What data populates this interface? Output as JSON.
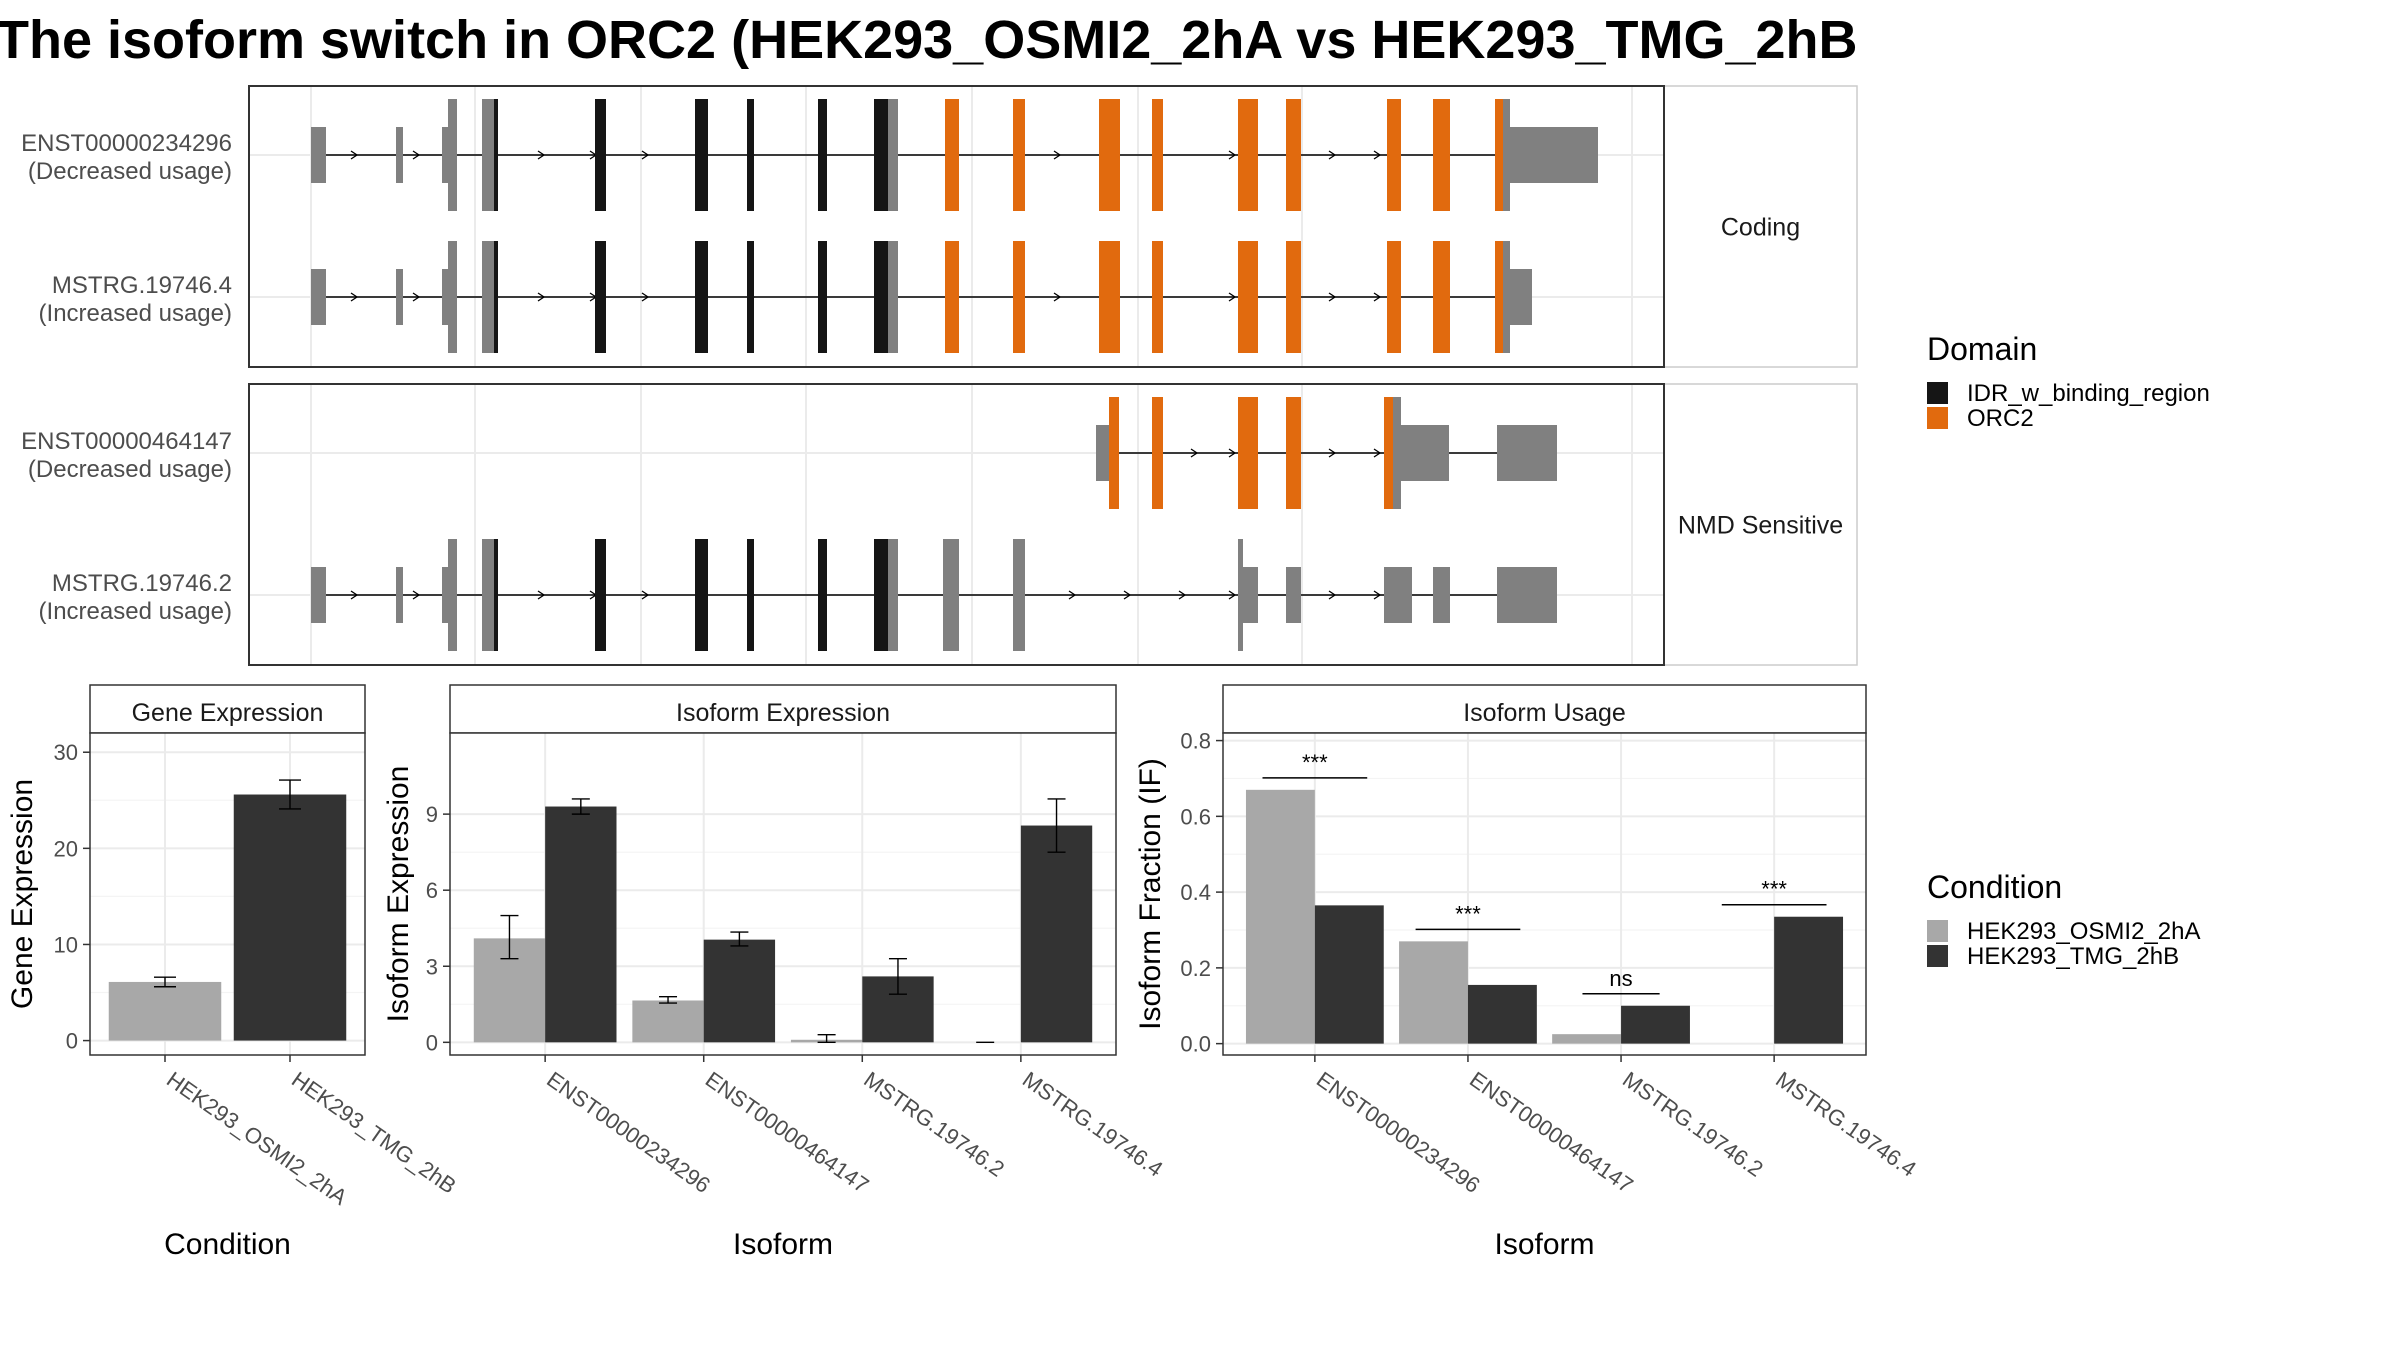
{
  "title": "The isoform switch in ORC2 (HEK293_OSMI2_2hA vs HEK293_TMG_2hB",
  "colors": {
    "idr": "#151515",
    "orc2": "#e16a0e",
    "exon": "#808080",
    "cond1": "#a8a8a8",
    "cond2": "#333333",
    "panel_border": "#333333",
    "strip_fill": "#ffffff",
    "grid": "#ebebeb"
  },
  "structure_panel": {
    "facets": [
      "Coding",
      "NMD Sensitive"
    ],
    "transcripts": [
      {
        "id": "ENST00000234296",
        "usage": "(Decreased usage)",
        "facet": "Coding"
      },
      {
        "id": "MSTRG.19746.4",
        "usage": "(Increased usage)",
        "facet": "Coding"
      },
      {
        "id": "ENST00000464147",
        "usage": "(Decreased usage)",
        "facet": "NMD Sensitive"
      },
      {
        "id": "MSTRG.19746.2",
        "usage": "(Increased usage)",
        "facet": "NMD Sensitive"
      }
    ]
  },
  "legends": {
    "domain": {
      "title": "Domain",
      "items": [
        "IDR_w_binding_region",
        "ORC2"
      ]
    },
    "condition": {
      "title": "Condition",
      "items": [
        "HEK293_OSMI2_2hA",
        "HEK293_TMG_2hB"
      ]
    }
  },
  "chart_data": [
    {
      "type": "bar",
      "title": "Gene Expression",
      "xlabel": "Condition",
      "ylabel": "Gene Expression",
      "categories": [
        "HEK293_OSMI2_2hA",
        "HEK293_TMG_2hB"
      ],
      "values": [
        6.1,
        25.6
      ],
      "error": [
        [
          5.6,
          6.6
        ],
        [
          24.1,
          27.1
        ]
      ],
      "ylim": [
        -1.5,
        32
      ],
      "yticks": [
        0,
        10,
        20,
        30
      ],
      "grid": true
    },
    {
      "type": "bar",
      "title": "Isoform Expression",
      "xlabel": "Isoform",
      "ylabel": "Isoform Expression",
      "categories": [
        "ENST00000234296",
        "ENST00000464147",
        "MSTRG.19746.2",
        "MSTRG.19746.4"
      ],
      "series": [
        {
          "name": "HEK293_OSMI2_2hA",
          "values": [
            4.1,
            1.65,
            0.1,
            0.0
          ],
          "error": [
            [
              3.3,
              5.0
            ],
            [
              1.55,
              1.8
            ],
            [
              0.0,
              0.3
            ],
            [
              0.0,
              0.0
            ]
          ]
        },
        {
          "name": "HEK293_TMG_2hB",
          "values": [
            9.3,
            4.05,
            2.6,
            8.55
          ],
          "error": [
            [
              9.0,
              9.6
            ],
            [
              3.8,
              4.35
            ],
            [
              1.9,
              3.3
            ],
            [
              7.5,
              9.6
            ]
          ]
        }
      ],
      "ylim": [
        -0.5,
        12.2
      ],
      "yticks": [
        0,
        3,
        6,
        9
      ],
      "grid": true
    },
    {
      "type": "bar",
      "title": "Isoform Usage",
      "xlabel": "Isoform",
      "ylabel": "Isoform Fraction (IF)",
      "categories": [
        "ENST00000234296",
        "ENST00000464147",
        "MSTRG.19746.2",
        "MSTRG.19746.4"
      ],
      "series": [
        {
          "name": "HEK293_OSMI2_2hA",
          "values": [
            0.67,
            0.27,
            0.025,
            0.0
          ]
        },
        {
          "name": "HEK293_TMG_2hB",
          "values": [
            0.365,
            0.155,
            0.1,
            0.335
          ]
        }
      ],
      "significance": [
        "***",
        "***",
        "ns",
        "***"
      ],
      "ylim": [
        -0.03,
        0.82
      ],
      "yticks": [
        "0.0",
        "0.2",
        "0.4",
        "0.6",
        "0.8"
      ],
      "grid": true
    }
  ]
}
